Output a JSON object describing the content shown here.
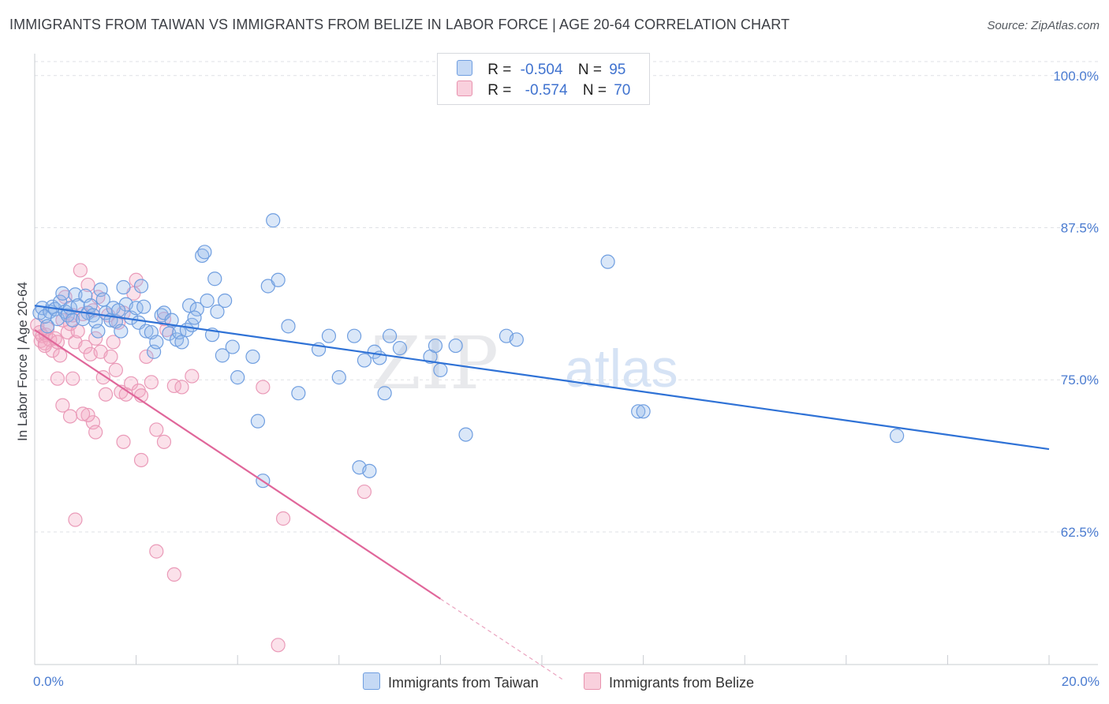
{
  "header": {
    "title": "IMMIGRANTS FROM TAIWAN VS IMMIGRANTS FROM BELIZE IN LABOR FORCE | AGE 20-64 CORRELATION CHART",
    "source": "Source: ZipAtlas.com"
  },
  "watermark": {
    "zip": "ZIP",
    "atlas": "atlas"
  },
  "legend_top": {
    "rows": [
      {
        "r_label": "R =",
        "r_value": "-0.504",
        "n_label": "N =",
        "n_value": "95",
        "color": "#a9c6ef"
      },
      {
        "r_label": "R =",
        "r_value": "-0.574",
        "n_label": "N =",
        "n_value": "70",
        "color": "#f4b6c9"
      }
    ]
  },
  "legend_bottom": {
    "taiwan": "Immigrants from Taiwan",
    "belize": "Immigrants from Belize"
  },
  "chart_data": {
    "type": "scatter",
    "title": "IMMIGRANTS FROM TAIWAN VS IMMIGRANTS FROM BELIZE IN LABOR FORCE | AGE 20-64 CORRELATION CHART",
    "xlabel": "",
    "ylabel": "In Labor Force | Age 20-64",
    "xlim": [
      0,
      20
    ],
    "ylim": [
      51.6,
      101.8
    ],
    "x_tick_labels": [
      "0.0%",
      "20.0%"
    ],
    "y_ticks": [
      62.5,
      75.0,
      87.5,
      100.0
    ],
    "y_tick_labels": [
      "62.5%",
      "75.0%",
      "87.5%",
      "100.0%"
    ],
    "grid": true,
    "legend_placement": "top-center",
    "colors": {
      "taiwan": "#4a86d8",
      "belize": "#e27aa0",
      "taiwan_line": "#2f72d6",
      "belize_line": "#e0669a"
    },
    "series": [
      {
        "name": "Immigrants from Taiwan",
        "trend": {
          "x": [
            0.0,
            20.0
          ],
          "y": [
            81.1,
            69.3
          ]
        },
        "points": [
          [
            0.1,
            80.5
          ],
          [
            0.15,
            80.9
          ],
          [
            0.2,
            80.2
          ],
          [
            0.25,
            79.4
          ],
          [
            0.3,
            80.6
          ],
          [
            0.35,
            81.0
          ],
          [
            0.4,
            80.8
          ],
          [
            0.45,
            80.0
          ],
          [
            0.5,
            81.4
          ],
          [
            0.55,
            82.1
          ],
          [
            0.6,
            80.6
          ],
          [
            0.65,
            80.3
          ],
          [
            0.7,
            80.9
          ],
          [
            0.75,
            79.9
          ],
          [
            0.8,
            82.0
          ],
          [
            0.85,
            81.1
          ],
          [
            1.0,
            81.9
          ],
          [
            1.05,
            80.5
          ],
          [
            1.1,
            81.1
          ],
          [
            1.15,
            80.3
          ],
          [
            1.2,
            79.8
          ],
          [
            1.25,
            79.0
          ],
          [
            1.3,
            82.4
          ],
          [
            1.35,
            81.6
          ],
          [
            1.4,
            80.5
          ],
          [
            1.5,
            79.9
          ],
          [
            1.55,
            80.9
          ],
          [
            1.6,
            79.8
          ],
          [
            1.7,
            79.0
          ],
          [
            1.75,
            82.6
          ],
          [
            1.8,
            81.2
          ],
          [
            1.9,
            80.1
          ],
          [
            2.0,
            80.9
          ],
          [
            2.05,
            79.7
          ],
          [
            2.1,
            82.7
          ],
          [
            2.2,
            79.0
          ],
          [
            2.3,
            78.9
          ],
          [
            2.35,
            77.3
          ],
          [
            2.4,
            78.1
          ],
          [
            2.5,
            80.3
          ],
          [
            2.55,
            80.5
          ],
          [
            2.65,
            78.8
          ],
          [
            2.7,
            79.9
          ],
          [
            2.8,
            78.3
          ],
          [
            2.85,
            78.9
          ],
          [
            2.9,
            78.1
          ],
          [
            3.0,
            79.1
          ],
          [
            3.05,
            81.1
          ],
          [
            3.1,
            79.5
          ],
          [
            3.2,
            80.8
          ],
          [
            3.3,
            85.2
          ],
          [
            3.35,
            85.5
          ],
          [
            3.4,
            81.5
          ],
          [
            3.5,
            78.7
          ],
          [
            3.55,
            83.3
          ],
          [
            3.6,
            80.6
          ],
          [
            3.7,
            77.0
          ],
          [
            3.75,
            81.5
          ],
          [
            3.9,
            77.7
          ],
          [
            4.0,
            75.2
          ],
          [
            4.3,
            76.9
          ],
          [
            4.4,
            71.6
          ],
          [
            4.5,
            66.7
          ],
          [
            4.6,
            82.7
          ],
          [
            4.7,
            88.1
          ],
          [
            4.8,
            83.2
          ],
          [
            5.0,
            79.4
          ],
          [
            5.2,
            73.9
          ],
          [
            5.6,
            77.5
          ],
          [
            5.8,
            78.6
          ],
          [
            6.0,
            75.2
          ],
          [
            6.3,
            78.6
          ],
          [
            6.4,
            67.8
          ],
          [
            6.5,
            76.6
          ],
          [
            6.6,
            67.5
          ],
          [
            6.7,
            77.3
          ],
          [
            6.8,
            76.8
          ],
          [
            6.9,
            73.9
          ],
          [
            7.0,
            78.6
          ],
          [
            7.2,
            77.6
          ],
          [
            7.8,
            76.9
          ],
          [
            7.9,
            77.8
          ],
          [
            8.0,
            75.8
          ],
          [
            8.3,
            77.8
          ],
          [
            8.5,
            70.5
          ],
          [
            9.3,
            78.6
          ],
          [
            9.5,
            78.3
          ],
          [
            11.3,
            84.7
          ],
          [
            11.9,
            72.4
          ],
          [
            12.0,
            72.4
          ],
          [
            17.0,
            70.4
          ],
          [
            1.65,
            80.7
          ],
          [
            2.15,
            81.0
          ],
          [
            0.95,
            80.0
          ],
          [
            3.15,
            80.1
          ]
        ]
      },
      {
        "name": "Immigrants from Belize",
        "trend": {
          "x": [
            0.0,
            8.0
          ],
          "y": [
            79.1,
            57.0
          ]
        },
        "trend_dashed": {
          "x": [
            8.0,
            10.4
          ],
          "y": [
            57.0,
            50.4
          ]
        },
        "points": [
          [
            0.05,
            79.5
          ],
          [
            0.1,
            78.9
          ],
          [
            0.12,
            78.2
          ],
          [
            0.15,
            78.6
          ],
          [
            0.2,
            78.0
          ],
          [
            0.22,
            78.7
          ],
          [
            0.25,
            79.2
          ],
          [
            0.3,
            78.3
          ],
          [
            0.35,
            77.4
          ],
          [
            0.4,
            78.4
          ],
          [
            0.45,
            78.1
          ],
          [
            0.5,
            77.0
          ],
          [
            0.55,
            79.9
          ],
          [
            0.6,
            81.8
          ],
          [
            0.65,
            78.9
          ],
          [
            0.7,
            79.6
          ],
          [
            0.75,
            80.3
          ],
          [
            0.8,
            78.1
          ],
          [
            0.85,
            79.0
          ],
          [
            0.9,
            84.0
          ],
          [
            0.95,
            80.4
          ],
          [
            1.0,
            77.7
          ],
          [
            1.05,
            82.8
          ],
          [
            1.1,
            77.1
          ],
          [
            1.15,
            80.7
          ],
          [
            1.2,
            78.4
          ],
          [
            1.25,
            81.8
          ],
          [
            1.3,
            77.3
          ],
          [
            1.35,
            75.2
          ],
          [
            1.4,
            73.8
          ],
          [
            1.45,
            80.3
          ],
          [
            1.5,
            76.9
          ],
          [
            1.55,
            78.1
          ],
          [
            1.6,
            75.8
          ],
          [
            1.65,
            79.7
          ],
          [
            1.7,
            74.0
          ],
          [
            1.75,
            80.5
          ],
          [
            1.8,
            73.8
          ],
          [
            1.9,
            74.7
          ],
          [
            1.95,
            82.1
          ],
          [
            2.0,
            83.2
          ],
          [
            2.05,
            74.1
          ],
          [
            2.1,
            73.7
          ],
          [
            2.2,
            76.9
          ],
          [
            2.3,
            74.8
          ],
          [
            2.4,
            70.9
          ],
          [
            2.55,
            80.0
          ],
          [
            2.6,
            79.1
          ],
          [
            2.75,
            74.5
          ],
          [
            2.9,
            74.4
          ],
          [
            3.1,
            75.3
          ],
          [
            1.75,
            69.9
          ],
          [
            2.1,
            68.4
          ],
          [
            2.55,
            69.9
          ],
          [
            1.15,
            71.5
          ],
          [
            1.05,
            72.1
          ],
          [
            0.95,
            72.2
          ],
          [
            0.7,
            72.0
          ],
          [
            0.55,
            72.9
          ],
          [
            0.45,
            75.1
          ],
          [
            0.75,
            75.1
          ],
          [
            1.2,
            70.7
          ],
          [
            0.8,
            63.5
          ],
          [
            2.4,
            60.9
          ],
          [
            2.75,
            59.0
          ],
          [
            4.8,
            53.2
          ],
          [
            4.5,
            74.4
          ],
          [
            4.9,
            63.6
          ],
          [
            6.5,
            65.8
          ],
          [
            0.2,
            77.8
          ]
        ]
      }
    ]
  }
}
